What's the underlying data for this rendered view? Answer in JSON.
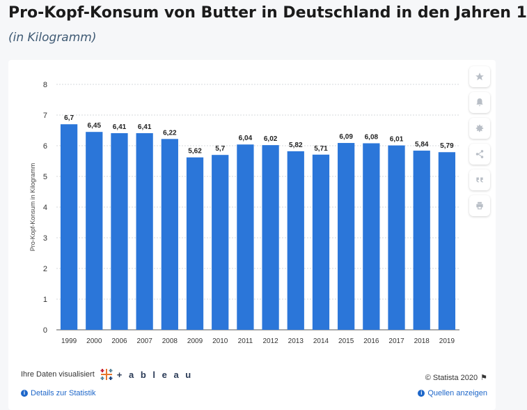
{
  "title": "Pro-Kopf-Konsum von Butter in Deutschland in den Jahren 1",
  "subtitle": "(in Kilogramm)",
  "sidebar": {
    "buttons": [
      "star-icon",
      "bell-icon",
      "gear-icon",
      "share-icon",
      "quote-icon",
      "print-icon"
    ]
  },
  "footer": {
    "tableau_prefix": "Ihre Daten visualisiert",
    "tableau_brand": "+ a b l e a u",
    "copyright": "© Statista 2020",
    "details_link": "Details zur Statistik",
    "sources_link": "Quellen anzeigen"
  },
  "colors": {
    "bar": "#2b76d9",
    "accent": "#1d66c9"
  },
  "chart_data": {
    "type": "bar",
    "title": "",
    "xlabel": "",
    "ylabel": "Pro-Kopf-Konsum in Kilogramm",
    "ylim": [
      0,
      8
    ],
    "yticks": [
      0,
      1,
      2,
      3,
      4,
      5,
      6,
      7,
      8
    ],
    "grid": true,
    "categories": [
      "1999",
      "2000",
      "2006",
      "2007",
      "2008",
      "2009",
      "2010",
      "2011",
      "2012",
      "2013",
      "2014",
      "2015",
      "2016",
      "2017",
      "2018",
      "2019"
    ],
    "values": [
      6.7,
      6.45,
      6.41,
      6.41,
      6.22,
      5.62,
      5.7,
      6.04,
      6.02,
      5.82,
      5.71,
      6.09,
      6.08,
      6.01,
      5.84,
      5.79
    ],
    "value_labels": [
      "6,7",
      "6,45",
      "6,41",
      "6,41",
      "6,22",
      "5,62",
      "5,7",
      "6,04",
      "6,02",
      "5,82",
      "5,71",
      "6,09",
      "6,08",
      "6,01",
      "5,84",
      "5,79"
    ]
  }
}
